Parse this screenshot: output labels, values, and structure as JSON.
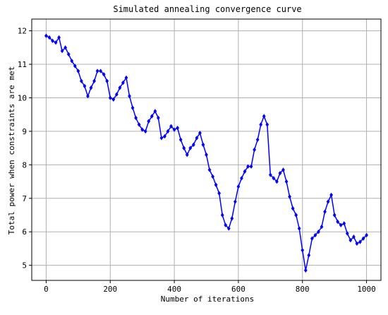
{
  "chart_data": {
    "type": "line",
    "title": "Simulated annealing convergence curve",
    "xlabel": "Number of iterations",
    "ylabel": "Total power when constraints are met",
    "xlim": [
      -45,
      1045
    ],
    "ylim": [
      4.55,
      12.35
    ],
    "x_ticks": [
      0,
      200,
      400,
      600,
      800,
      1000
    ],
    "y_ticks": [
      5,
      6,
      7,
      8,
      9,
      10,
      11,
      12
    ],
    "grid": true,
    "marker": "diamond",
    "line_color": "#0000ff",
    "marker_color": "#0000ff",
    "series": [
      {
        "x": [
          0,
          10,
          20,
          30,
          40,
          50,
          60,
          70,
          80,
          90,
          100,
          110,
          120,
          130,
          140,
          150,
          160,
          170,
          180,
          190,
          200,
          210,
          220,
          230,
          240,
          250,
          260,
          270,
          280,
          290,
          300,
          310,
          320,
          330,
          340,
          350,
          360,
          370,
          380,
          390,
          400,
          410,
          420,
          430,
          440,
          450,
          460,
          470,
          480,
          490,
          500,
          510,
          520,
          530,
          540,
          550,
          560,
          570,
          580,
          590,
          600,
          610,
          620,
          630,
          640,
          650,
          660,
          670,
          680,
          690,
          700,
          710,
          720,
          730,
          740,
          750,
          760,
          770,
          780,
          790,
          800,
          810,
          820,
          830,
          840,
          850,
          860,
          870,
          880,
          890,
          900,
          910,
          920,
          930,
          940,
          950,
          960,
          970,
          980,
          990,
          1000
        ],
        "y": [
          11.85,
          11.8,
          11.7,
          11.65,
          11.8,
          11.4,
          11.5,
          11.3,
          11.1,
          10.95,
          10.8,
          10.5,
          10.35,
          10.05,
          10.3,
          10.5,
          10.8,
          10.8,
          10.7,
          10.5,
          10.0,
          9.95,
          10.1,
          10.3,
          10.45,
          10.6,
          10.05,
          9.7,
          9.4,
          9.2,
          9.05,
          9.0,
          9.3,
          9.45,
          9.6,
          9.4,
          8.8,
          8.85,
          9.0,
          9.15,
          9.05,
          9.1,
          8.75,
          8.5,
          8.3,
          8.5,
          8.6,
          8.8,
          8.95,
          8.6,
          8.3,
          7.85,
          7.65,
          7.4,
          7.15,
          6.5,
          6.2,
          6.1,
          6.4,
          6.9,
          7.35,
          7.6,
          7.8,
          7.95,
          7.95,
          8.45,
          8.75,
          9.2,
          9.45,
          9.2,
          7.7,
          7.6,
          7.5,
          7.75,
          7.85,
          7.5,
          7.05,
          6.7,
          6.5,
          6.1,
          5.45,
          4.85,
          5.3,
          5.8,
          5.9,
          6.0,
          6.15,
          6.6,
          6.9,
          7.1,
          6.5,
          6.3,
          6.2,
          6.25,
          5.95,
          5.75,
          5.85,
          5.65,
          5.7,
          5.8,
          5.9
        ]
      }
    ]
  }
}
